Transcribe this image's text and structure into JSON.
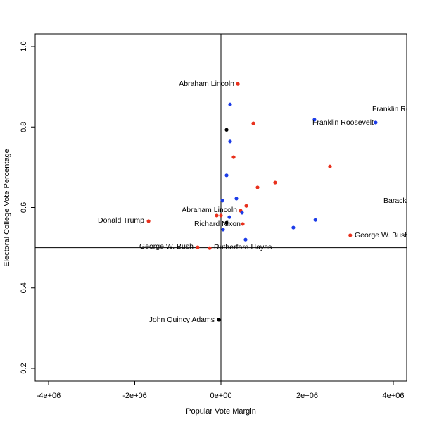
{
  "chart_data": {
    "type": "scatter",
    "x_label": "Popular Vote Margin",
    "y_label": "Electoral College Vote Percentage",
    "x": [
      392000,
      212000,
      131000,
      751000,
      2170000,
      3590000,
      212000,
      294000,
      2530000,
      131000,
      1257000,
      849000,
      33000,
      359000,
      588000,
      457000,
      490000,
      -98000,
      0,
      196000,
      -1680000,
      2190000,
      506000,
      131000,
      49000,
      1680000,
      3000000,
      571000,
      -539000,
      -261000,
      -49000
    ],
    "y": [
      0.907,
      0.856,
      0.793,
      0.809,
      0.818,
      0.811,
      0.764,
      0.725,
      0.702,
      0.68,
      0.662,
      0.65,
      0.617,
      0.622,
      0.604,
      0.592,
      0.587,
      0.58,
      0.58,
      0.576,
      0.566,
      0.569,
      0.559,
      0.562,
      0.545,
      0.55,
      0.531,
      0.52,
      0.501,
      0.499,
      0.321
    ],
    "colors": [
      "#e8301c",
      "#1c3ce8",
      "#000000",
      "#e8301c",
      "#1c3ce8",
      "#1c3ce8",
      "#1c3ce8",
      "#e8301c",
      "#e8301c",
      "#1c3ce8",
      "#e8301c",
      "#e8301c",
      "#1c3ce8",
      "#1c3ce8",
      "#e8301c",
      "#e8301c",
      "#1c3ce8",
      "#e8301c",
      "#e8301c",
      "#1c3ce8",
      "#e8301c",
      "#1c3ce8",
      "#e8301c",
      "#000000",
      "#1c3ce8",
      "#1c3ce8",
      "#e8301c",
      "#1c3ce8",
      "#e8301c",
      "#e8301c",
      "#000000"
    ],
    "annotations": [
      "Abraham Lincoln",
      "Franklin Ro",
      "Franklin Roosevelt",
      "Barack",
      "Abraham Lincoln",
      "Donald Trump",
      "Richard Nixon",
      "George W. Bush",
      "George W. Bush",
      "Rutherford Hayes",
      "John Quincy Adams"
    ],
    "vlines": [
      0
    ],
    "hlines": [
      0.5
    ],
    "xlim": [
      -4310000,
      4310000
    ],
    "ylim": [
      0.1685,
      1.0315
    ],
    "xticks": [
      {
        "value": -4000000,
        "label": "-4e+06"
      },
      {
        "value": -2000000,
        "label": "-2e+06"
      },
      {
        "value": 0,
        "label": "0e+00"
      },
      {
        "value": 2000000,
        "label": "2e+06"
      },
      {
        "value": 4000000,
        "label": "4e+06"
      }
    ],
    "yticks": [
      0.2,
      0.4,
      0.6,
      0.8,
      {
        "value": 1.0,
        "label": "1.0"
      }
    ]
  }
}
